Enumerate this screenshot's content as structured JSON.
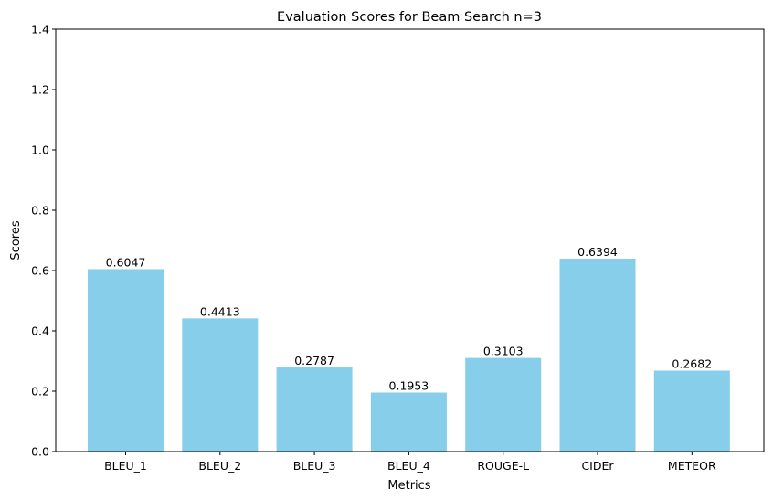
{
  "chart_data": {
    "type": "bar",
    "title": "Evaluation Scores for Beam Search n=3",
    "xlabel": "Metrics",
    "ylabel": "Scores",
    "categories": [
      "BLEU_1",
      "BLEU_2",
      "BLEU_3",
      "BLEU_4",
      "ROUGE-L",
      "CIDEr",
      "METEOR"
    ],
    "values": [
      0.6047,
      0.4413,
      0.2787,
      0.1953,
      0.3103,
      0.6394,
      0.2682
    ],
    "value_labels": [
      "0.6047",
      "0.4413",
      "0.2787",
      "0.1953",
      "0.3103",
      "0.6394",
      "0.2682"
    ],
    "ylim": [
      0,
      1.4
    ],
    "yticks": [
      0.0,
      0.2,
      0.4,
      0.6,
      0.8,
      1.0,
      1.2,
      1.4
    ],
    "ytick_labels": [
      "0.0",
      "0.2",
      "0.4",
      "0.6",
      "0.8",
      "1.0",
      "1.2",
      "1.4"
    ],
    "grid": false,
    "bar_color": "#87ceeb"
  }
}
